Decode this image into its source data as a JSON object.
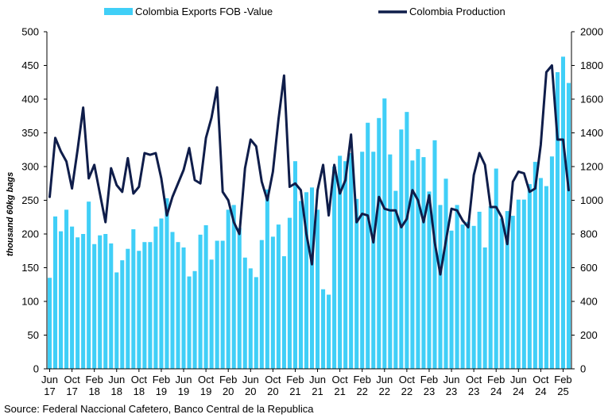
{
  "chart_data": {
    "type": "bar+line",
    "title": "",
    "source": "Source: Federal Naccional Cafetero, Banco Central de la Republica",
    "ylabel": "thousand 60kg bags",
    "ylim_left": [
      0,
      500
    ],
    "ylim_right": [
      0,
      2000
    ],
    "yticks_left": [
      0,
      50,
      100,
      150,
      200,
      250,
      300,
      350,
      400,
      450,
      500
    ],
    "yticks_right": [
      0,
      200,
      400,
      600,
      800,
      1000,
      1200,
      1400,
      1600,
      1800,
      2000
    ],
    "xtick_labels": [
      {
        "month": "Jun",
        "year": "17"
      },
      {
        "month": "Oct",
        "year": "17"
      },
      {
        "month": "Feb",
        "year": "18"
      },
      {
        "month": "Jun",
        "year": "18"
      },
      {
        "month": "Oct",
        "year": "18"
      },
      {
        "month": "Feb",
        "year": "19"
      },
      {
        "month": "Jun",
        "year": "19"
      },
      {
        "month": "Oct",
        "year": "19"
      },
      {
        "month": "Feb",
        "year": "20"
      },
      {
        "month": "Jun",
        "year": "20"
      },
      {
        "month": "Oct",
        "year": "20"
      },
      {
        "month": "Feb",
        "year": "21"
      },
      {
        "month": "Jun",
        "year": "21"
      },
      {
        "month": "Oct",
        "year": "21"
      },
      {
        "month": "Feb",
        "year": "22"
      },
      {
        "month": "Jun",
        "year": "22"
      },
      {
        "month": "Oct",
        "year": "22"
      },
      {
        "month": "Feb",
        "year": "23"
      },
      {
        "month": "Jun",
        "year": "23"
      },
      {
        "month": "Oct",
        "year": "23"
      },
      {
        "month": "Feb",
        "year": "24"
      },
      {
        "month": "Jun",
        "year": "24"
      },
      {
        "month": "Oct",
        "year": "24"
      },
      {
        "month": "Feb",
        "year": "25"
      }
    ],
    "legend_position": "top",
    "series": [
      {
        "name": "Colombia Exports FOB -Value",
        "type": "bar",
        "axis": "left",
        "color": "#40CFF7",
        "values": [
          135,
          226,
          204,
          236,
          211,
          195,
          200,
          248,
          185,
          198,
          200,
          186,
          143,
          161,
          178,
          207,
          175,
          188,
          188,
          211,
          223,
          253,
          203,
          188,
          180,
          137,
          145,
          199,
          213,
          162,
          190,
          190,
          236,
          243,
          209,
          165,
          149,
          136,
          191,
          266,
          196,
          214,
          167,
          224,
          308,
          249,
          262,
          269,
          236,
          118,
          110,
          300,
          316,
          308,
          320,
          252,
          322,
          365,
          322,
          372,
          401,
          318,
          264,
          355,
          381,
          309,
          326,
          314,
          263,
          339,
          243,
          282,
          205,
          243,
          214,
          218,
          212,
          233,
          180,
          241,
          297,
          223,
          234,
          227,
          251,
          251,
          274,
          307,
          283,
          271,
          315,
          440,
          463,
          424
        ],
        "start": "Jun 2017"
      },
      {
        "name": "Colombia Production",
        "type": "line",
        "axis": "right",
        "color": "#0F1D4A",
        "values": [
          1020,
          1370,
          1290,
          1230,
          1070,
          1300,
          1550,
          1130,
          1210,
          1040,
          870,
          1190,
          1090,
          1050,
          1250,
          1040,
          1080,
          1280,
          1270,
          1280,
          1130,
          910,
          1020,
          1100,
          1180,
          1310,
          1120,
          1100,
          1370,
          1490,
          1670,
          1050,
          1000,
          870,
          800,
          1190,
          1360,
          1320,
          1110,
          1000,
          1170,
          1480,
          1740,
          1080,
          1100,
          1060,
          800,
          620,
          1060,
          1210,
          910,
          1210,
          1040,
          1120,
          1390,
          870,
          920,
          910,
          750,
          1020,
          950,
          940,
          940,
          840,
          890,
          1060,
          1000,
          870,
          1030,
          750,
          560,
          760,
          950,
          940,
          880,
          840,
          1150,
          1280,
          1210,
          960,
          960,
          900,
          740,
          1110,
          1170,
          1160,
          1050,
          1070,
          1330,
          1760,
          1800,
          1360,
          1360,
          1060
        ],
        "start": "Jun 2017"
      }
    ]
  }
}
